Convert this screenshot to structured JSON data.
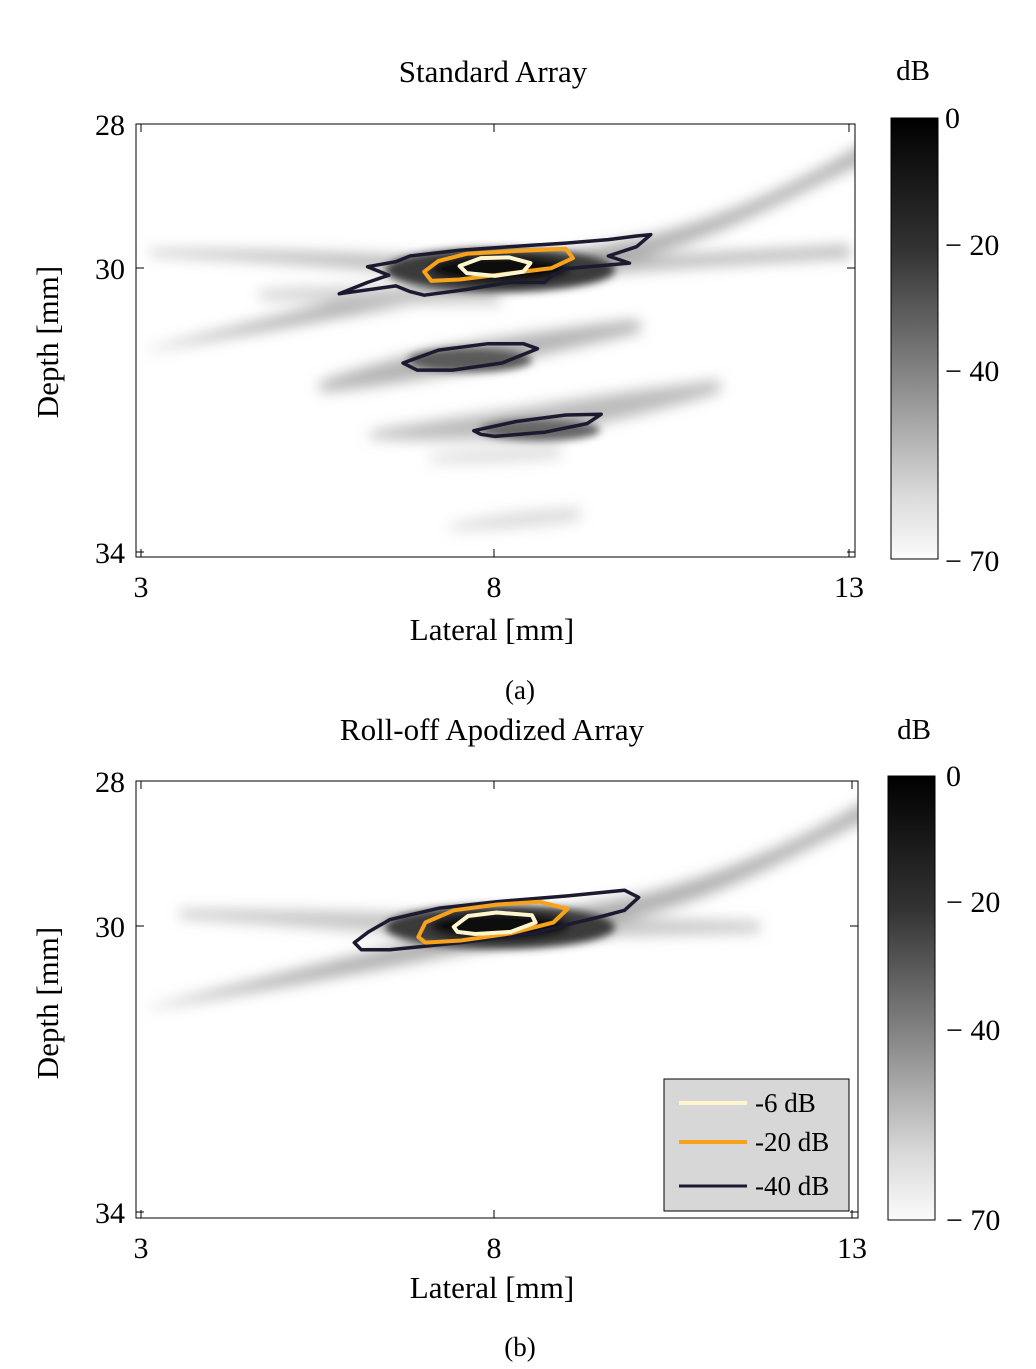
{
  "chart_data": [
    {
      "type": "heatmap",
      "title": "Standard Array",
      "caption": "(a)",
      "xlabel": "Lateral [mm]",
      "ylabel": "Depth [mm]",
      "xlim": [
        3,
        13
      ],
      "ylim": [
        34,
        28
      ],
      "xticks": [
        "3",
        "8",
        "13"
      ],
      "yticks": [
        "28",
        "30",
        "34"
      ],
      "colorbar": {
        "label": "dB",
        "range": [
          -70,
          0
        ],
        "ticks": [
          "0",
          "− 20",
          "− 40",
          "− 70"
        ]
      },
      "series": [
        {
          "level_db": -6,
          "color": "#fff6d0",
          "contours": [
            [
              [
                7.5,
                29.99
              ],
              [
                7.8,
                29.88
              ],
              [
                8.2,
                29.87
              ],
              [
                8.5,
                29.95
              ],
              [
                8.4,
                30.07
              ],
              [
                8.0,
                30.13
              ],
              [
                7.6,
                30.09
              ]
            ]
          ]
        },
        {
          "level_db": -20,
          "color": "#f7a21b",
          "contours": [
            [
              [
                7.0,
                30.07
              ],
              [
                7.2,
                29.92
              ],
              [
                7.6,
                29.82
              ],
              [
                8.3,
                29.78
              ],
              [
                9.0,
                29.75
              ],
              [
                9.1,
                29.88
              ],
              [
                8.8,
                30.02
              ],
              [
                8.0,
                30.12
              ],
              [
                7.5,
                30.18
              ],
              [
                7.1,
                30.2
              ]
            ]
          ]
        },
        {
          "level_db": -40,
          "color": "#1c1a30",
          "contours": [
            [
              [
                6.2,
                30.0
              ],
              [
                6.6,
                29.93
              ],
              [
                6.8,
                29.85
              ],
              [
                7.5,
                29.77
              ],
              [
                8.2,
                29.72
              ],
              [
                9.0,
                29.67
              ],
              [
                9.6,
                29.62
              ],
              [
                10.0,
                29.57
              ],
              [
                10.2,
                29.55
              ],
              [
                10.0,
                29.72
              ],
              [
                9.6,
                29.85
              ],
              [
                9.9,
                29.95
              ],
              [
                9.0,
                30.03
              ],
              [
                8.8,
                30.13
              ],
              [
                8.7,
                30.22
              ],
              [
                8.2,
                30.22
              ],
              [
                7.6,
                30.32
              ],
              [
                7.0,
                30.4
              ],
              [
                6.8,
                30.35
              ],
              [
                6.6,
                30.27
              ],
              [
                5.8,
                30.38
              ],
              [
                6.2,
                30.22
              ],
              [
                6.5,
                30.12
              ]
            ],
            [
              [
                6.7,
                31.35
              ],
              [
                7.2,
                31.17
              ],
              [
                7.9,
                31.08
              ],
              [
                8.4,
                31.08
              ],
              [
                8.6,
                31.15
              ],
              [
                8.1,
                31.35
              ],
              [
                7.4,
                31.45
              ],
              [
                6.9,
                31.45
              ]
            ],
            [
              [
                7.7,
                32.3
              ],
              [
                8.3,
                32.17
              ],
              [
                9.0,
                32.08
              ],
              [
                9.5,
                32.07
              ],
              [
                9.3,
                32.2
              ],
              [
                8.7,
                32.32
              ],
              [
                8.0,
                32.38
              ],
              [
                7.8,
                32.35
              ]
            ]
          ]
        }
      ]
    },
    {
      "type": "heatmap",
      "title": "Roll-off Apodized Array",
      "caption": "(b)",
      "xlabel": "Lateral [mm]",
      "ylabel": "Depth [mm]",
      "xlim": [
        3,
        13
      ],
      "ylim": [
        34,
        28
      ],
      "xticks": [
        "3",
        "8",
        "13"
      ],
      "yticks": [
        "28",
        "30",
        "34"
      ],
      "colorbar": {
        "label": "dB",
        "range": [
          -70,
          0
        ],
        "ticks": [
          "0",
          "− 20",
          "− 40",
          "− 70"
        ]
      },
      "legend": {
        "placement": "bottom-right",
        "entries": [
          "-6 dB",
          "-20 dB",
          "-40 dB"
        ]
      },
      "series": [
        {
          "name": "-6 dB",
          "level_db": -6,
          "color": "#fff6d0",
          "contours": [
            [
              [
                7.4,
                30.03
              ],
              [
                7.6,
                29.88
              ],
              [
                8.0,
                29.83
              ],
              [
                8.5,
                29.87
              ],
              [
                8.55,
                29.97
              ],
              [
                8.2,
                30.1
              ],
              [
                7.7,
                30.13
              ],
              [
                7.45,
                30.1
              ]
            ]
          ]
        },
        {
          "name": "-20 dB",
          "level_db": -20,
          "color": "#f7a21b",
          "contours": [
            [
              [
                6.9,
                30.17
              ],
              [
                7.0,
                29.97
              ],
              [
                7.4,
                29.8
              ],
              [
                8.0,
                29.72
              ],
              [
                8.6,
                29.68
              ],
              [
                9.0,
                29.78
              ],
              [
                8.8,
                29.97
              ],
              [
                8.2,
                30.12
              ],
              [
                7.5,
                30.22
              ],
              [
                7.0,
                30.25
              ]
            ]
          ]
        },
        {
          "name": "-40 dB",
          "level_db": -40,
          "color": "#1c1a30",
          "contours": [
            [
              [
                6.0,
                30.25
              ],
              [
                6.2,
                30.1
              ],
              [
                6.5,
                29.93
              ],
              [
                7.2,
                29.77
              ],
              [
                8.0,
                29.68
              ],
              [
                9.0,
                29.6
              ],
              [
                9.8,
                29.52
              ],
              [
                10.0,
                29.62
              ],
              [
                9.8,
                29.8
              ],
              [
                9.5,
                29.88
              ],
              [
                8.5,
                30.12
              ],
              [
                7.5,
                30.25
              ],
              [
                6.5,
                30.35
              ],
              [
                6.1,
                30.35
              ]
            ]
          ]
        }
      ]
    }
  ]
}
